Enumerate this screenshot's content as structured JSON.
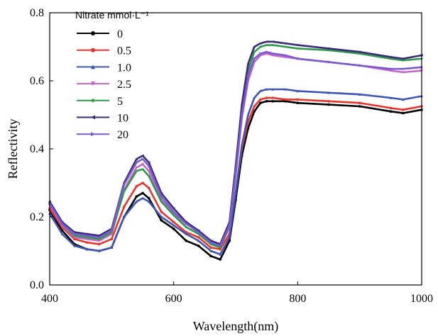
{
  "chart_data": {
    "type": "line",
    "xlabel": "Wavelength(nm)",
    "ylabel": "Reflectivity",
    "xlim": [
      400,
      1000
    ],
    "ylim": [
      0.0,
      0.8
    ],
    "x_ticks": [
      "400",
      "600",
      "800",
      "1000"
    ],
    "y_ticks": [
      "0.0",
      "0.2",
      "0.4",
      "0.6",
      "0.8"
    ],
    "grid": false,
    "legend": {
      "title": "Nitrate mmol·L⁻¹",
      "position": "top-left"
    },
    "x": [
      400,
      420,
      440,
      460,
      480,
      500,
      520,
      540,
      550,
      560,
      580,
      600,
      620,
      640,
      660,
      675,
      690,
      700,
      710,
      720,
      730,
      740,
      750,
      760,
      780,
      800,
      850,
      900,
      950,
      970,
      1000
    ],
    "series": [
      {
        "name": "0",
        "color": "#000000",
        "marker": "circle",
        "values": [
          0.22,
          0.16,
          0.12,
          0.105,
          0.1,
          0.11,
          0.2,
          0.26,
          0.27,
          0.255,
          0.19,
          0.165,
          0.13,
          0.115,
          0.085,
          0.075,
          0.13,
          0.25,
          0.38,
          0.46,
          0.51,
          0.535,
          0.54,
          0.54,
          0.54,
          0.535,
          0.53,
          0.525,
          0.51,
          0.505,
          0.515
        ]
      },
      {
        "name": "0.5",
        "color": "#e8352c",
        "marker": "circle",
        "values": [
          0.225,
          0.17,
          0.135,
          0.125,
          0.12,
          0.135,
          0.23,
          0.29,
          0.3,
          0.285,
          0.215,
          0.185,
          0.155,
          0.14,
          0.11,
          0.105,
          0.15,
          0.27,
          0.4,
          0.48,
          0.525,
          0.545,
          0.55,
          0.55,
          0.545,
          0.545,
          0.54,
          0.535,
          0.52,
          0.515,
          0.525
        ]
      },
      {
        "name": "1.0",
        "color": "#3d55b5",
        "marker": "triangle-up",
        "values": [
          0.21,
          0.15,
          0.115,
          0.105,
          0.1,
          0.11,
          0.2,
          0.245,
          0.255,
          0.245,
          0.2,
          0.175,
          0.15,
          0.13,
          0.1,
          0.09,
          0.14,
          0.27,
          0.41,
          0.5,
          0.55,
          0.57,
          0.575,
          0.575,
          0.575,
          0.57,
          0.565,
          0.56,
          0.55,
          0.545,
          0.555
        ]
      },
      {
        "name": "2.5",
        "color": "#c266c8",
        "marker": "triangle-down",
        "values": [
          0.235,
          0.175,
          0.14,
          0.135,
          0.13,
          0.15,
          0.28,
          0.345,
          0.355,
          0.335,
          0.25,
          0.21,
          0.17,
          0.15,
          0.12,
          0.11,
          0.17,
          0.32,
          0.49,
          0.6,
          0.655,
          0.675,
          0.68,
          0.675,
          0.67,
          0.665,
          0.655,
          0.645,
          0.63,
          0.625,
          0.63
        ]
      },
      {
        "name": "5",
        "color": "#2e9a4b",
        "marker": "diamond",
        "values": [
          0.24,
          0.18,
          0.145,
          0.14,
          0.135,
          0.155,
          0.275,
          0.335,
          0.34,
          0.32,
          0.245,
          0.205,
          0.17,
          0.15,
          0.12,
          0.11,
          0.175,
          0.33,
          0.51,
          0.63,
          0.685,
          0.7,
          0.705,
          0.705,
          0.7,
          0.695,
          0.69,
          0.68,
          0.665,
          0.66,
          0.665
        ]
      },
      {
        "name": "10",
        "color": "#3a2c7a",
        "marker": "triangle-left",
        "values": [
          0.245,
          0.185,
          0.155,
          0.15,
          0.145,
          0.165,
          0.3,
          0.37,
          0.38,
          0.36,
          0.27,
          0.225,
          0.185,
          0.16,
          0.13,
          0.12,
          0.185,
          0.35,
          0.53,
          0.65,
          0.7,
          0.71,
          0.715,
          0.715,
          0.71,
          0.705,
          0.695,
          0.685,
          0.67,
          0.665,
          0.675
        ]
      },
      {
        "name": "20",
        "color": "#7b5ad0",
        "marker": "triangle-right",
        "values": [
          0.24,
          0.18,
          0.15,
          0.145,
          0.14,
          0.16,
          0.295,
          0.36,
          0.37,
          0.35,
          0.26,
          0.215,
          0.18,
          0.155,
          0.125,
          0.115,
          0.175,
          0.33,
          0.5,
          0.615,
          0.665,
          0.68,
          0.685,
          0.68,
          0.675,
          0.665,
          0.655,
          0.645,
          0.635,
          0.635,
          0.64
        ]
      }
    ]
  }
}
